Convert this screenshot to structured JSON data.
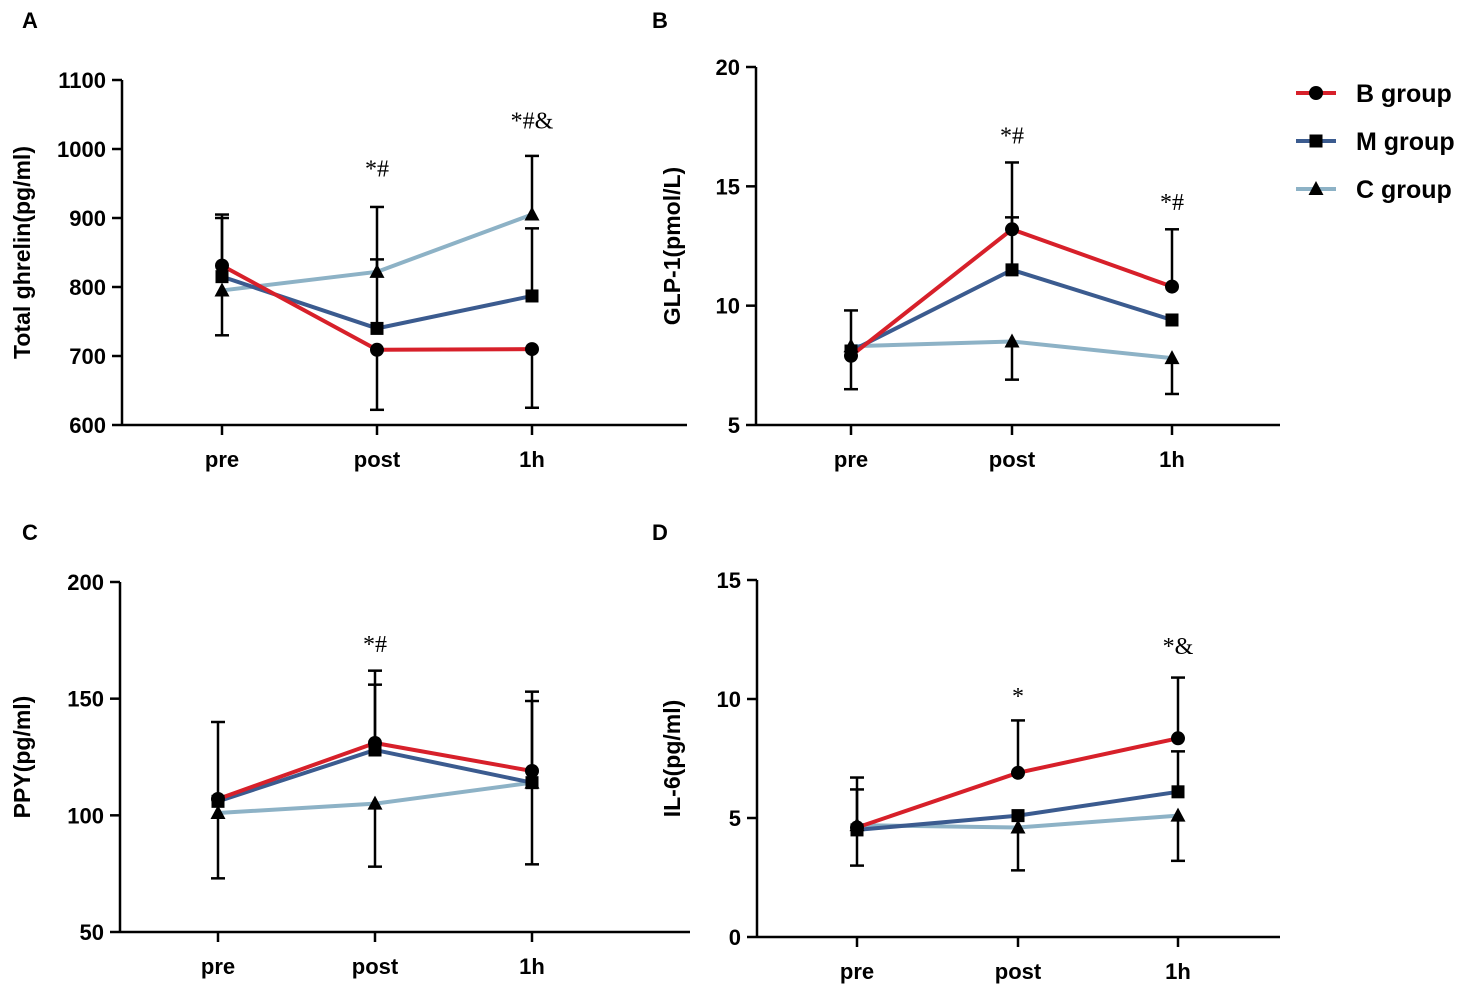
{
  "colors": {
    "B group": "#d7202a",
    "M group": "#3b5b8f",
    "C group": "#8db2c6"
  },
  "legend": {
    "items": [
      {
        "name": "B group",
        "marker": "circle"
      },
      {
        "name": "M group",
        "marker": "square"
      },
      {
        "name": "C group",
        "marker": "triangle"
      }
    ]
  },
  "chart_data": [
    {
      "panel": "A",
      "type": "line",
      "ylabel": "Total ghrelin(pg/ml)",
      "categories": [
        "pre",
        "post",
        "1h"
      ],
      "ylim": [
        600,
        1100
      ],
      "yticks": [
        600,
        700,
        800,
        900,
        1000,
        1100
      ],
      "series": [
        {
          "name": "B group",
          "values": [
            831,
            709,
            710
          ],
          "err": [
            [
              null,
              905
            ],
            [
              622,
              null
            ],
            [
              625,
              null
            ]
          ]
        },
        {
          "name": "M group",
          "values": [
            815,
            740,
            787
          ],
          "err": [
            [
              null,
              900
            ],
            [
              null,
              840
            ],
            [
              null,
              885
            ]
          ]
        },
        {
          "name": "C group",
          "values": [
            795,
            822,
            905
          ],
          "err": [
            [
              730,
              null
            ],
            [
              null,
              916
            ],
            [
              null,
              990
            ]
          ]
        }
      ],
      "annotations": [
        {
          "cat": "post",
          "y": 960,
          "text": "*#"
        },
        {
          "cat": "1h",
          "y": 1030,
          "text": "*#&"
        }
      ]
    },
    {
      "panel": "B",
      "type": "line",
      "ylabel": "GLP-1(pmol/L)",
      "categories": [
        "pre",
        "post",
        "1h"
      ],
      "ylim": [
        5,
        20
      ],
      "yticks": [
        5,
        10,
        15,
        20
      ],
      "series": [
        {
          "name": "B group",
          "values": [
            7.9,
            13.2,
            10.8
          ],
          "err": [
            [
              6.5,
              null
            ],
            [
              null,
              16.0
            ],
            [
              null,
              13.2
            ]
          ]
        },
        {
          "name": "M group",
          "values": [
            8.1,
            11.5,
            9.4
          ],
          "err": [
            [
              null,
              null
            ],
            [
              null,
              13.7
            ],
            [
              null,
              null
            ]
          ]
        },
        {
          "name": "C group",
          "values": [
            8.3,
            8.5,
            7.8
          ],
          "err": [
            [
              null,
              9.8
            ],
            [
              6.9,
              null
            ],
            [
              6.3,
              null
            ]
          ]
        }
      ],
      "annotations": [
        {
          "cat": "post",
          "y": 16.8,
          "text": "*#"
        },
        {
          "cat": "1h",
          "y": 14.0,
          "text": "*#"
        }
      ]
    },
    {
      "panel": "C",
      "type": "line",
      "ylabel": "PPY(pg/ml)",
      "categories": [
        "pre",
        "post",
        "1h"
      ],
      "ylim": [
        50,
        200
      ],
      "yticks": [
        50,
        100,
        150,
        200
      ],
      "series": [
        {
          "name": "B group",
          "values": [
            107,
            131,
            119
          ],
          "err": [
            [
              null,
              140
            ],
            [
              null,
              162
            ],
            [
              null,
              153
            ]
          ]
        },
        {
          "name": "M group",
          "values": [
            106,
            128,
            114
          ],
          "err": [
            [
              null,
              null
            ],
            [
              null,
              156
            ],
            [
              null,
              149
            ]
          ]
        },
        {
          "name": "C group",
          "values": [
            101,
            105,
            114
          ],
          "err": [
            [
              73,
              null
            ],
            [
              78,
              null
            ],
            [
              79,
              null
            ]
          ]
        }
      ],
      "annotations": [
        {
          "cat": "post",
          "y": 170,
          "text": "*#"
        }
      ]
    },
    {
      "panel": "D",
      "type": "line",
      "ylabel": "IL-6(pg/ml)",
      "categories": [
        "pre",
        "post",
        "1h"
      ],
      "ylim": [
        0,
        15
      ],
      "yticks": [
        0,
        5,
        10,
        15
      ],
      "series": [
        {
          "name": "B group",
          "values": [
            4.6,
            6.9,
            8.35
          ],
          "err": [
            [
              null,
              6.7
            ],
            [
              null,
              9.1
            ],
            [
              null,
              10.9
            ]
          ]
        },
        {
          "name": "M group",
          "values": [
            4.5,
            5.1,
            6.1
          ],
          "err": [
            [
              null,
              6.2
            ],
            [
              null,
              null
            ],
            [
              null,
              7.8
            ]
          ]
        },
        {
          "name": "C group",
          "values": [
            4.7,
            4.6,
            5.1
          ],
          "err": [
            [
              3.0,
              null
            ],
            [
              2.8,
              null
            ],
            [
              3.2,
              null
            ]
          ]
        }
      ],
      "annotations": [
        {
          "cat": "post",
          "y": 9.8,
          "text": "*"
        },
        {
          "cat": "1h",
          "y": 11.9,
          "text": "*&"
        }
      ]
    }
  ]
}
